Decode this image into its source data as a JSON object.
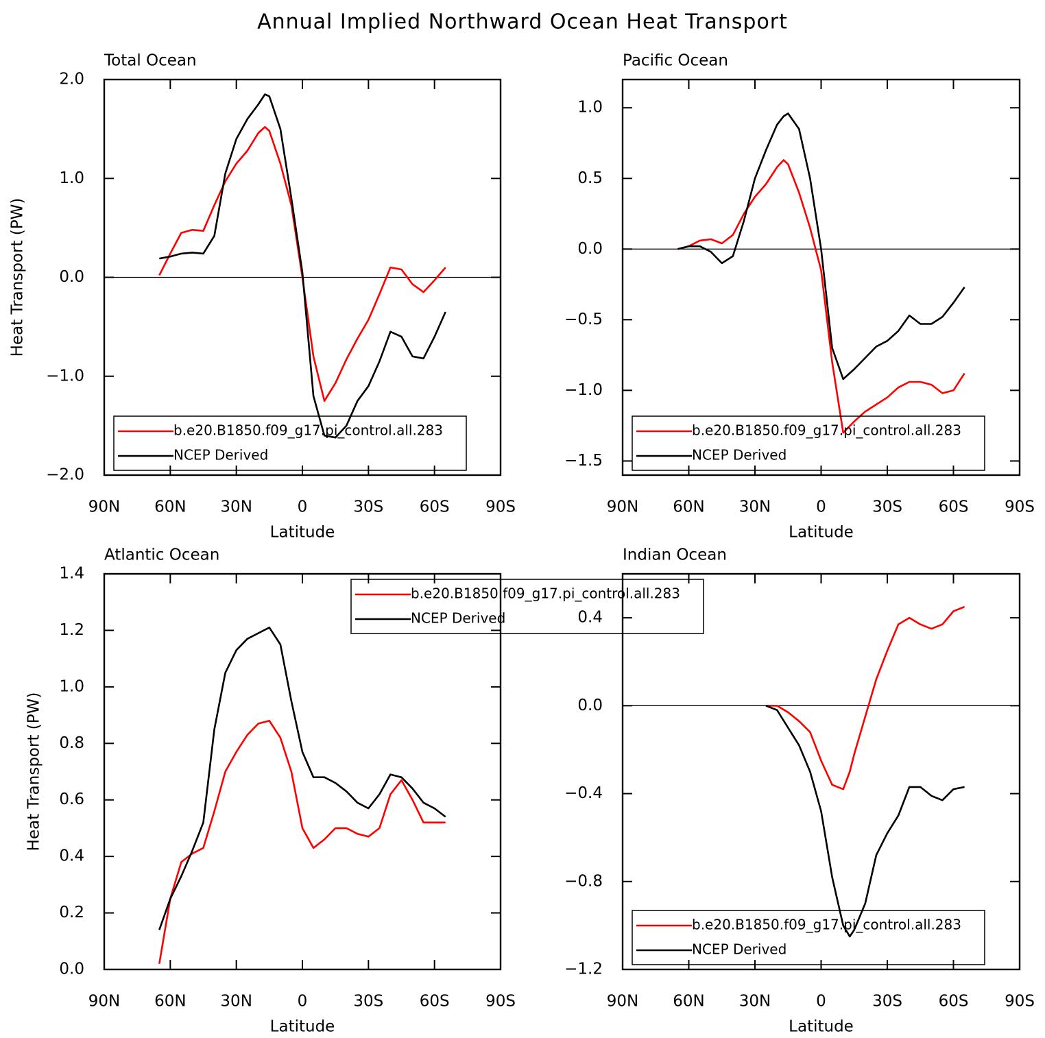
{
  "title": "Annual Implied Northward Ocean Heat Transport",
  "chart_data": [
    {
      "type": "line",
      "title": "Total Ocean",
      "xlabel": "Latitude",
      "ylabel": "Heat Transport (PW)",
      "xlim": [
        90,
        -90
      ],
      "ylim": [
        -2,
        2
      ],
      "xticks": [
        {
          "value": 90,
          "label": "90N"
        },
        {
          "value": 60,
          "label": "60N"
        },
        {
          "value": 30,
          "label": "30N"
        },
        0,
        {
          "value": -30,
          "label": "30S"
        },
        {
          "value": -60,
          "label": "60S"
        },
        {
          "value": -90,
          "label": "90S"
        }
      ],
      "yticks": [
        {
          "value": -2,
          "label": "−2.0"
        },
        {
          "value": -1,
          "label": "−1.0"
        },
        {
          "value": 0,
          "label": "0.0"
        },
        {
          "value": 1,
          "label": "1.0"
        },
        {
          "value": 2,
          "label": "2.0"
        }
      ],
      "legend": "lower left",
      "x": [
        65,
        60,
        55,
        50,
        45,
        40,
        35,
        30,
        25,
        20,
        17,
        15,
        10,
        5,
        0,
        -5,
        -10,
        -15,
        -20,
        -25,
        -30,
        -35,
        -40,
        -45,
        -50,
        -55,
        -60,
        -65
      ],
      "series": [
        {
          "name": "b.e20.B1850.f09_g17.pi_control.all.283",
          "color": "#ff0000",
          "values": [
            0.02,
            0.24,
            0.45,
            0.48,
            0.47,
            0.73,
            0.97,
            1.15,
            1.28,
            1.46,
            1.52,
            1.48,
            1.15,
            0.73,
            0.0,
            -0.8,
            -1.25,
            -1.07,
            -0.83,
            -0.62,
            -0.43,
            -0.17,
            0.1,
            0.08,
            -0.07,
            -0.15,
            -0.03,
            0.1
          ]
        },
        {
          "name": "NCEP Derived",
          "color": "#000000",
          "values": [
            0.19,
            0.21,
            0.24,
            0.25,
            0.24,
            0.42,
            1.05,
            1.4,
            1.6,
            1.75,
            1.85,
            1.83,
            1.5,
            0.8,
            0.05,
            -1.2,
            -1.6,
            -1.62,
            -1.5,
            -1.25,
            -1.1,
            -0.85,
            -0.55,
            -0.6,
            -0.8,
            -0.82,
            -0.6,
            -0.35
          ]
        }
      ]
    },
    {
      "type": "line",
      "title": "Pacific Ocean",
      "xlabel": "Latitude",
      "xlim": [
        90,
        -90
      ],
      "ylim": [
        -1.6,
        1.2
      ],
      "xticks": [
        {
          "value": 90,
          "label": "90N"
        },
        {
          "value": 60,
          "label": "60N"
        },
        {
          "value": 30,
          "label": "30N"
        },
        0,
        {
          "value": -30,
          "label": "30S"
        },
        {
          "value": -60,
          "label": "60S"
        },
        {
          "value": -90,
          "label": "90S"
        }
      ],
      "yticks": [
        {
          "value": -1.5,
          "label": "−1.5"
        },
        {
          "value": -1,
          "label": "−1.0"
        },
        {
          "value": -0.5,
          "label": "−0.5"
        },
        {
          "value": 0,
          "label": "0.0"
        },
        0.5,
        {
          "value": 1,
          "label": "1.0"
        }
      ],
      "legend": "lower left",
      "x": [
        65,
        60,
        55,
        50,
        45,
        40,
        35,
        30,
        25,
        20,
        17,
        15,
        10,
        5,
        0,
        -5,
        -10,
        -15,
        -20,
        -25,
        -30,
        -35,
        -40,
        -45,
        -50,
        -55,
        -60,
        -65
      ],
      "series": [
        {
          "name": "b.e20.B1850.f09_g17.pi_control.all.283",
          "color": "#ff0000",
          "values": [
            0.0,
            0.02,
            0.06,
            0.07,
            0.04,
            0.1,
            0.25,
            0.37,
            0.46,
            0.58,
            0.63,
            0.6,
            0.4,
            0.15,
            -0.15,
            -0.8,
            -1.3,
            -1.22,
            -1.15,
            -1.1,
            -1.05,
            -0.98,
            -0.94,
            -0.94,
            -0.96,
            -1.02,
            -1.0,
            -0.88
          ]
        },
        {
          "name": "NCEP Derived",
          "color": "#000000",
          "values": [
            0.0,
            0.02,
            0.02,
            -0.02,
            -0.1,
            -0.05,
            0.2,
            0.5,
            0.7,
            0.88,
            0.94,
            0.96,
            0.85,
            0.5,
            0.0,
            -0.7,
            -0.92,
            -0.85,
            -0.77,
            -0.69,
            -0.65,
            -0.58,
            -0.47,
            -0.53,
            -0.53,
            -0.48,
            -0.38,
            -0.27
          ]
        }
      ]
    },
    {
      "type": "line",
      "title": "Atlantic Ocean",
      "xlabel": "Latitude",
      "ylabel": "Heat Transport (PW)",
      "xlim": [
        90,
        -90
      ],
      "ylim": [
        0,
        1.4
      ],
      "xticks": [
        {
          "value": 90,
          "label": "90N"
        },
        {
          "value": 60,
          "label": "60N"
        },
        {
          "value": 30,
          "label": "30N"
        },
        0,
        {
          "value": -30,
          "label": "30S"
        },
        {
          "value": -60,
          "label": "60S"
        },
        {
          "value": -90,
          "label": "90S"
        }
      ],
      "yticks": [
        {
          "value": 0,
          "label": "0.0"
        },
        0.2,
        0.4,
        0.6,
        0.8,
        {
          "value": 1,
          "label": "1.0"
        },
        1.2,
        1.4
      ],
      "legend": "upper right",
      "x": [
        65,
        60,
        55,
        50,
        45,
        40,
        35,
        30,
        25,
        20,
        15,
        10,
        5,
        0,
        -5,
        -10,
        -15,
        -20,
        -25,
        -30,
        -35,
        -40,
        -45,
        -50,
        -55,
        -60,
        -65
      ],
      "series": [
        {
          "name": "b.e20.B1850.f09_g17.pi_control.all.283",
          "color": "#ff0000",
          "values": [
            0.02,
            0.25,
            0.38,
            0.41,
            0.43,
            0.56,
            0.7,
            0.77,
            0.83,
            0.87,
            0.88,
            0.82,
            0.7,
            0.5,
            0.43,
            0.46,
            0.5,
            0.5,
            0.48,
            0.47,
            0.5,
            0.62,
            0.67,
            0.6,
            0.52,
            0.52,
            0.52
          ]
        },
        {
          "name": "NCEP Derived",
          "color": "#000000",
          "values": [
            0.14,
            0.25,
            0.33,
            0.42,
            0.52,
            0.85,
            1.05,
            1.13,
            1.17,
            1.19,
            1.21,
            1.15,
            0.95,
            0.77,
            0.68,
            0.68,
            0.66,
            0.63,
            0.59,
            0.57,
            0.62,
            0.69,
            0.68,
            0.64,
            0.59,
            0.57,
            0.54
          ]
        }
      ]
    },
    {
      "type": "line",
      "title": "Indian Ocean",
      "xlabel": "Latitude",
      "xlim": [
        90,
        -90
      ],
      "ylim": [
        -1.2,
        0.6
      ],
      "xticks": [
        {
          "value": 90,
          "label": "90N"
        },
        {
          "value": 60,
          "label": "60N"
        },
        {
          "value": 30,
          "label": "30N"
        },
        0,
        {
          "value": -30,
          "label": "30S"
        },
        {
          "value": -60,
          "label": "60S"
        },
        {
          "value": -90,
          "label": "90S"
        }
      ],
      "yticks": [
        {
          "value": -1.2,
          "label": "−1.2"
        },
        {
          "value": -0.8,
          "label": "−0.8"
        },
        {
          "value": -0.4,
          "label": "−0.4"
        },
        {
          "value": 0,
          "label": "0.0"
        },
        0.4
      ],
      "legend": "lower left",
      "x": [
        25,
        20,
        15,
        10,
        5,
        0,
        -5,
        -10,
        -13,
        -15,
        -20,
        -25,
        -30,
        -35,
        -40,
        -45,
        -50,
        -55,
        -60,
        -65
      ],
      "series": [
        {
          "name": "b.e20.B1850.f09_g17.pi_control.all.283",
          "color": "#ff0000",
          "values": [
            0.0,
            0.0,
            -0.03,
            -0.07,
            -0.12,
            -0.25,
            -0.36,
            -0.38,
            -0.3,
            -0.22,
            -0.05,
            0.12,
            0.25,
            0.37,
            0.4,
            0.37,
            0.35,
            0.37,
            0.43,
            0.45
          ]
        },
        {
          "name": "NCEP Derived",
          "color": "#000000",
          "values": [
            0.0,
            -0.02,
            -0.1,
            -0.18,
            -0.3,
            -0.48,
            -0.78,
            -1.0,
            -1.05,
            -1.02,
            -0.9,
            -0.68,
            -0.58,
            -0.5,
            -0.37,
            -0.37,
            -0.41,
            -0.43,
            -0.38,
            -0.37
          ]
        }
      ]
    }
  ]
}
